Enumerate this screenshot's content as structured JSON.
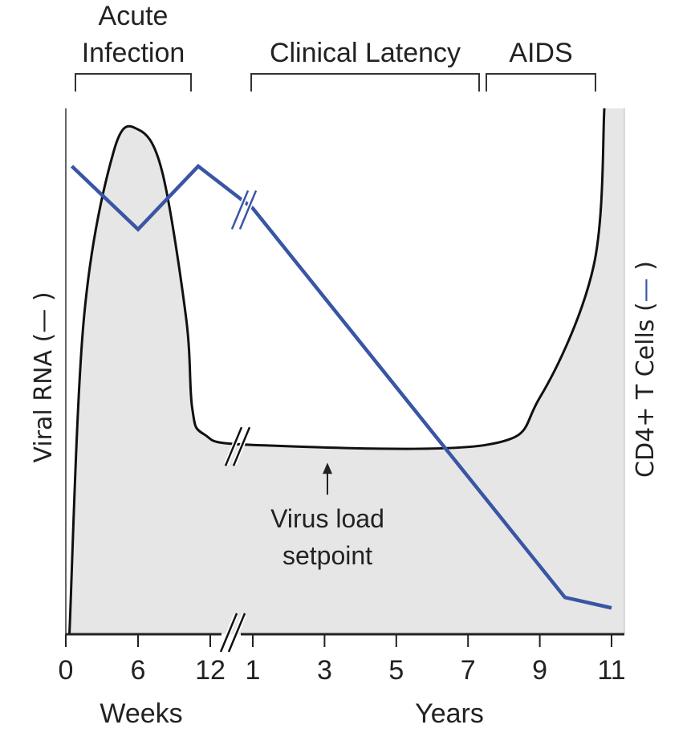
{
  "chart_data": {
    "type": "line",
    "phases": [
      {
        "lines": [
          "Acute",
          "Infection"
        ],
        "start": "weeks:0",
        "end": "weeks:12"
      },
      {
        "lines": [
          "Clinical Latency"
        ],
        "start": "years:1",
        "end": "years:7.5"
      },
      {
        "lines": [
          "AIDS"
        ],
        "start": "years:7.5",
        "end": "years:11"
      }
    ],
    "x_axis": {
      "segments": [
        {
          "unit_label": "Weeks",
          "range": [
            0,
            12
          ],
          "ticks": [
            "0",
            "6",
            "12"
          ]
        },
        {
          "unit_label": "Years",
          "range": [
            1,
            11
          ],
          "ticks": [
            "1",
            "3",
            "5",
            "7",
            "9",
            "11"
          ]
        }
      ],
      "axis_break": true
    },
    "y_left_label": "Viral RNA (",
    "y_right_label": "CD4+ T Cells (",
    "y_range": [
      0,
      100
    ],
    "series": [
      {
        "name": "Viral RNA",
        "color": "#111111",
        "filled": true,
        "fill_color": "#e6e6e6",
        "points": [
          {
            "x": "weeks:0.3",
            "y": 0
          },
          {
            "x": "weeks:1.5",
            "y": 60
          },
          {
            "x": "weeks:4",
            "y": 92
          },
          {
            "x": "weeks:6",
            "y": 96
          },
          {
            "x": "weeks:8",
            "y": 88
          },
          {
            "x": "weeks:10",
            "y": 60
          },
          {
            "x": "weeks:10.5",
            "y": 43
          },
          {
            "x": "weeks:11.5",
            "y": 38
          },
          {
            "x": "years:1",
            "y": 36
          },
          {
            "x": "years:7.5",
            "y": 36
          },
          {
            "x": "years:9",
            "y": 45
          },
          {
            "x": "years:10.5",
            "y": 70
          },
          {
            "x": "years:10.8",
            "y": 100
          }
        ]
      },
      {
        "name": "CD4+ T Cells",
        "color": "#3a55a4",
        "points": [
          {
            "x": "weeks:0.5",
            "y": 89
          },
          {
            "x": "weeks:6",
            "y": 77
          },
          {
            "x": "weeks:11",
            "y": 89
          },
          {
            "x": "years:1",
            "y": 81
          },
          {
            "x": "years:9.7",
            "y": 7
          },
          {
            "x": "years:11",
            "y": 5
          }
        ]
      }
    ],
    "annotations": [
      {
        "lines": [
          "Virus load",
          "setpoint"
        ],
        "x": "years:3.4",
        "y": 36
      }
    ]
  }
}
